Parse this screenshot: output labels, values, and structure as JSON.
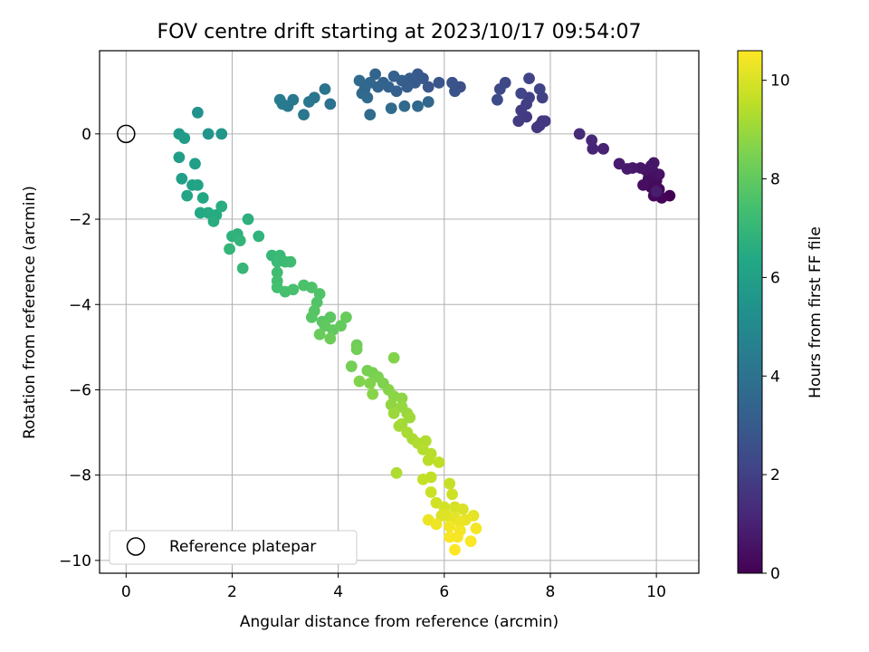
{
  "chart_data": {
    "type": "scatter",
    "title": "FOV centre drift starting at 2023/10/17 09:54:07",
    "xlabel": "Angular distance from reference (arcmin)",
    "ylabel": "Rotation from reference (arcmin)",
    "xlim": [
      -0.5,
      10.8
    ],
    "ylim": [
      -10.3,
      1.95
    ],
    "xticks": [
      0,
      2,
      4,
      6,
      8,
      10
    ],
    "xtick_labels": [
      "0",
      "2",
      "4",
      "6",
      "8",
      "10"
    ],
    "yticks": [
      0,
      -2,
      -4,
      -6,
      -8,
      -10
    ],
    "ytick_labels": [
      "0",
      "−2",
      "−4",
      "−6",
      "−8",
      "−10"
    ],
    "grid": true,
    "legend": {
      "placement": "lower-left",
      "entries": [
        "Reference platepar"
      ]
    },
    "reference_point": {
      "x": 0,
      "y": 0,
      "marker": "open-circle"
    },
    "colorbar": {
      "label": "Hours from first FF file",
      "colormap": "viridis",
      "range": [
        0,
        10.6
      ],
      "ticks": [
        0,
        2,
        4,
        6,
        8,
        10
      ],
      "tick_labels": [
        "0",
        "2",
        "4",
        "6",
        "8",
        "10"
      ]
    },
    "points": [
      {
        "x": 10.25,
        "y": -1.45,
        "h": 0.0
      },
      {
        "x": 10.1,
        "y": -1.5,
        "h": 0.1
      },
      {
        "x": 10.05,
        "y": -1.3,
        "h": 0.15
      },
      {
        "x": 9.95,
        "y": -1.45,
        "h": 0.2
      },
      {
        "x": 9.9,
        "y": -1.25,
        "h": 0.25
      },
      {
        "x": 10.0,
        "y": -1.1,
        "h": 0.3
      },
      {
        "x": 9.85,
        "y": -1.05,
        "h": 0.35
      },
      {
        "x": 9.75,
        "y": -1.2,
        "h": 0.4
      },
      {
        "x": 9.95,
        "y": -0.9,
        "h": 0.45
      },
      {
        "x": 10.05,
        "y": -0.95,
        "h": 0.5
      },
      {
        "x": 9.8,
        "y": -0.85,
        "h": 0.55
      },
      {
        "x": 9.7,
        "y": -0.8,
        "h": 0.6
      },
      {
        "x": 9.9,
        "y": -0.75,
        "h": 0.62
      },
      {
        "x": 9.95,
        "y": -0.68,
        "h": 0.65
      },
      {
        "x": 9.55,
        "y": -0.8,
        "h": 0.7
      },
      {
        "x": 9.45,
        "y": -0.82,
        "h": 0.75
      },
      {
        "x": 9.3,
        "y": -0.7,
        "h": 0.8
      },
      {
        "x": 10.0,
        "y": -1.35,
        "h": 0.85
      },
      {
        "x": 9.0,
        "y": -0.35,
        "h": 1.0
      },
      {
        "x": 8.8,
        "y": -0.35,
        "h": 1.05
      },
      {
        "x": 8.78,
        "y": -0.15,
        "h": 1.15
      },
      {
        "x": 8.55,
        "y": 0.0,
        "h": 1.3
      },
      {
        "x": 7.85,
        "y": 0.3,
        "h": 1.6
      },
      {
        "x": 7.8,
        "y": 0.2,
        "h": 1.65
      },
      {
        "x": 7.75,
        "y": 0.15,
        "h": 1.7
      },
      {
        "x": 7.9,
        "y": 0.3,
        "h": 1.75
      },
      {
        "x": 7.55,
        "y": 0.4,
        "h": 1.8
      },
      {
        "x": 7.4,
        "y": 0.3,
        "h": 1.85
      },
      {
        "x": 7.45,
        "y": 0.55,
        "h": 1.9
      },
      {
        "x": 7.55,
        "y": 0.7,
        "h": 1.95
      },
      {
        "x": 7.6,
        "y": 0.85,
        "h": 2.0
      },
      {
        "x": 7.85,
        "y": 0.85,
        "h": 2.05
      },
      {
        "x": 7.8,
        "y": 1.05,
        "h": 2.1
      },
      {
        "x": 7.6,
        "y": 1.3,
        "h": 2.15
      },
      {
        "x": 7.45,
        "y": 0.95,
        "h": 2.2
      },
      {
        "x": 7.15,
        "y": 1.2,
        "h": 2.3
      },
      {
        "x": 7.05,
        "y": 1.05,
        "h": 2.35
      },
      {
        "x": 7.0,
        "y": 0.8,
        "h": 2.4
      },
      {
        "x": 6.3,
        "y": 1.1,
        "h": 2.6
      },
      {
        "x": 6.2,
        "y": 1.0,
        "h": 2.7
      },
      {
        "x": 6.15,
        "y": 1.2,
        "h": 2.75
      },
      {
        "x": 5.9,
        "y": 1.2,
        "h": 2.8
      },
      {
        "x": 5.7,
        "y": 1.1,
        "h": 2.85
      },
      {
        "x": 5.6,
        "y": 1.3,
        "h": 2.9
      },
      {
        "x": 5.5,
        "y": 1.4,
        "h": 2.95
      },
      {
        "x": 5.45,
        "y": 1.2,
        "h": 3.0
      },
      {
        "x": 5.35,
        "y": 1.3,
        "h": 3.05
      },
      {
        "x": 5.3,
        "y": 1.1,
        "h": 3.1
      },
      {
        "x": 5.2,
        "y": 1.25,
        "h": 3.15
      },
      {
        "x": 5.1,
        "y": 1.0,
        "h": 3.2
      },
      {
        "x": 5.05,
        "y": 1.35,
        "h": 3.25
      },
      {
        "x": 4.95,
        "y": 1.1,
        "h": 3.3
      },
      {
        "x": 4.85,
        "y": 1.2,
        "h": 3.35
      },
      {
        "x": 4.75,
        "y": 1.1,
        "h": 3.4
      },
      {
        "x": 4.7,
        "y": 1.4,
        "h": 3.45
      },
      {
        "x": 4.6,
        "y": 1.2,
        "h": 3.5
      },
      {
        "x": 4.5,
        "y": 1.05,
        "h": 3.55
      },
      {
        "x": 4.45,
        "y": 0.95,
        "h": 3.6
      },
      {
        "x": 4.55,
        "y": 0.85,
        "h": 3.65
      },
      {
        "x": 4.4,
        "y": 1.25,
        "h": 3.7
      },
      {
        "x": 5.7,
        "y": 0.75,
        "h": 3.5
      },
      {
        "x": 5.5,
        "y": 0.65,
        "h": 3.55
      },
      {
        "x": 5.25,
        "y": 0.65,
        "h": 3.6
      },
      {
        "x": 5.0,
        "y": 0.6,
        "h": 3.65
      },
      {
        "x": 4.6,
        "y": 0.45,
        "h": 3.75
      },
      {
        "x": 3.85,
        "y": 0.7,
        "h": 4.0
      },
      {
        "x": 3.75,
        "y": 1.05,
        "h": 4.05
      },
      {
        "x": 3.55,
        "y": 0.85,
        "h": 4.1
      },
      {
        "x": 3.45,
        "y": 0.75,
        "h": 4.15
      },
      {
        "x": 3.35,
        "y": 0.45,
        "h": 4.2
      },
      {
        "x": 3.15,
        "y": 0.8,
        "h": 4.25
      },
      {
        "x": 3.05,
        "y": 0.65,
        "h": 4.3
      },
      {
        "x": 2.95,
        "y": 0.7,
        "h": 4.35
      },
      {
        "x": 2.9,
        "y": 0.8,
        "h": 4.4
      },
      {
        "x": 1.35,
        "y": 0.5,
        "h": 5.4
      },
      {
        "x": 1.55,
        "y": 0.0,
        "h": 5.5
      },
      {
        "x": 1.8,
        "y": 0.0,
        "h": 5.6
      },
      {
        "x": 1.0,
        "y": 0.0,
        "h": 5.8
      },
      {
        "x": 1.1,
        "y": -0.1,
        "h": 5.85
      },
      {
        "x": 1.0,
        "y": -0.55,
        "h": 5.9
      },
      {
        "x": 1.3,
        "y": -0.7,
        "h": 5.95
      },
      {
        "x": 1.05,
        "y": -1.05,
        "h": 6.0
      },
      {
        "x": 1.25,
        "y": -1.2,
        "h": 6.1
      },
      {
        "x": 1.35,
        "y": -1.2,
        "h": 6.15
      },
      {
        "x": 1.15,
        "y": -1.45,
        "h": 6.2
      },
      {
        "x": 1.45,
        "y": -1.5,
        "h": 6.3
      },
      {
        "x": 1.4,
        "y": -1.85,
        "h": 6.4
      },
      {
        "x": 1.55,
        "y": -1.85,
        "h": 6.45
      },
      {
        "x": 1.7,
        "y": -1.9,
        "h": 6.5
      },
      {
        "x": 1.65,
        "y": -2.05,
        "h": 6.55
      },
      {
        "x": 1.8,
        "y": -1.7,
        "h": 6.6
      },
      {
        "x": 2.3,
        "y": -2.0,
        "h": 6.7
      },
      {
        "x": 2.1,
        "y": -2.35,
        "h": 6.75
      },
      {
        "x": 2.0,
        "y": -2.4,
        "h": 6.8
      },
      {
        "x": 2.5,
        "y": -2.4,
        "h": 6.85
      },
      {
        "x": 2.15,
        "y": -2.5,
        "h": 6.9
      },
      {
        "x": 1.95,
        "y": -2.7,
        "h": 6.95
      },
      {
        "x": 2.2,
        "y": -3.15,
        "h": 7.0
      },
      {
        "x": 2.75,
        "y": -2.85,
        "h": 7.05
      },
      {
        "x": 2.9,
        "y": -2.85,
        "h": 7.1
      },
      {
        "x": 2.85,
        "y": -3.0,
        "h": 7.15
      },
      {
        "x": 3.0,
        "y": -3.0,
        "h": 7.2
      },
      {
        "x": 3.1,
        "y": -3.0,
        "h": 7.25
      },
      {
        "x": 2.85,
        "y": -3.25,
        "h": 7.3
      },
      {
        "x": 2.85,
        "y": -3.45,
        "h": 7.35
      },
      {
        "x": 2.85,
        "y": -3.6,
        "h": 7.4
      },
      {
        "x": 3.0,
        "y": -3.7,
        "h": 7.45
      },
      {
        "x": 3.15,
        "y": -3.65,
        "h": 7.5
      },
      {
        "x": 3.35,
        "y": -3.55,
        "h": 7.55
      },
      {
        "x": 3.5,
        "y": -3.6,
        "h": 7.6
      },
      {
        "x": 3.65,
        "y": -3.75,
        "h": 7.65
      },
      {
        "x": 3.6,
        "y": -3.95,
        "h": 7.7
      },
      {
        "x": 3.55,
        "y": -4.15,
        "h": 7.75
      },
      {
        "x": 3.5,
        "y": -4.3,
        "h": 7.8
      },
      {
        "x": 3.7,
        "y": -4.4,
        "h": 7.85
      },
      {
        "x": 3.85,
        "y": -4.3,
        "h": 7.9
      },
      {
        "x": 3.75,
        "y": -4.5,
        "h": 7.95
      },
      {
        "x": 3.9,
        "y": -4.6,
        "h": 8.0
      },
      {
        "x": 4.05,
        "y": -4.5,
        "h": 8.05
      },
      {
        "x": 4.15,
        "y": -4.3,
        "h": 8.1
      },
      {
        "x": 3.65,
        "y": -4.7,
        "h": 8.15
      },
      {
        "x": 3.85,
        "y": -4.8,
        "h": 8.2
      },
      {
        "x": 4.35,
        "y": -4.95,
        "h": 8.25
      },
      {
        "x": 4.35,
        "y": -5.05,
        "h": 8.3
      },
      {
        "x": 4.25,
        "y": -5.45,
        "h": 8.35
      },
      {
        "x": 4.55,
        "y": -5.55,
        "h": 8.4
      },
      {
        "x": 4.65,
        "y": -5.6,
        "h": 8.45
      },
      {
        "x": 4.75,
        "y": -5.7,
        "h": 8.5
      },
      {
        "x": 4.85,
        "y": -5.85,
        "h": 8.55
      },
      {
        "x": 4.6,
        "y": -5.85,
        "h": 8.6
      },
      {
        "x": 4.4,
        "y": -5.8,
        "h": 8.6
      },
      {
        "x": 4.95,
        "y": -6.0,
        "h": 8.65
      },
      {
        "x": 4.65,
        "y": -6.1,
        "h": 8.7
      },
      {
        "x": 5.05,
        "y": -6.15,
        "h": 8.75
      },
      {
        "x": 5.2,
        "y": -6.2,
        "h": 8.8
      },
      {
        "x": 5.05,
        "y": -5.25,
        "h": 8.6
      },
      {
        "x": 5.0,
        "y": -6.35,
        "h": 8.85
      },
      {
        "x": 5.2,
        "y": -6.4,
        "h": 8.9
      },
      {
        "x": 5.3,
        "y": -6.55,
        "h": 8.95
      },
      {
        "x": 5.05,
        "y": -6.55,
        "h": 9.0
      },
      {
        "x": 5.35,
        "y": -6.65,
        "h": 9.05
      },
      {
        "x": 5.2,
        "y": -6.8,
        "h": 9.1
      },
      {
        "x": 5.15,
        "y": -6.85,
        "h": 9.15
      },
      {
        "x": 5.3,
        "y": -7.0,
        "h": 9.2
      },
      {
        "x": 5.4,
        "y": -7.15,
        "h": 9.25
      },
      {
        "x": 5.5,
        "y": -7.25,
        "h": 9.3
      },
      {
        "x": 5.65,
        "y": -7.2,
        "h": 9.35
      },
      {
        "x": 5.6,
        "y": -7.4,
        "h": 9.4
      },
      {
        "x": 5.75,
        "y": -7.5,
        "h": 9.45
      },
      {
        "x": 5.7,
        "y": -7.65,
        "h": 9.5
      },
      {
        "x": 5.9,
        "y": -7.7,
        "h": 9.55
      },
      {
        "x": 5.1,
        "y": -7.95,
        "h": 9.3
      },
      {
        "x": 5.75,
        "y": -8.05,
        "h": 9.6
      },
      {
        "x": 5.6,
        "y": -8.1,
        "h": 9.65
      },
      {
        "x": 6.1,
        "y": -8.2,
        "h": 9.7
      },
      {
        "x": 5.75,
        "y": -8.4,
        "h": 9.75
      },
      {
        "x": 6.15,
        "y": -8.45,
        "h": 9.8
      },
      {
        "x": 5.85,
        "y": -8.65,
        "h": 9.85
      },
      {
        "x": 6.0,
        "y": -8.75,
        "h": 9.9
      },
      {
        "x": 6.2,
        "y": -8.75,
        "h": 9.95
      },
      {
        "x": 6.35,
        "y": -8.8,
        "h": 10.0
      },
      {
        "x": 5.95,
        "y": -8.95,
        "h": 10.05
      },
      {
        "x": 6.05,
        "y": -8.95,
        "h": 10.1
      },
      {
        "x": 6.2,
        "y": -9.0,
        "h": 10.15
      },
      {
        "x": 6.55,
        "y": -8.95,
        "h": 10.2
      },
      {
        "x": 6.4,
        "y": -9.05,
        "h": 10.25
      },
      {
        "x": 6.3,
        "y": -9.1,
        "h": 10.3
      },
      {
        "x": 5.7,
        "y": -9.05,
        "h": 10.3
      },
      {
        "x": 5.85,
        "y": -9.15,
        "h": 10.35
      },
      {
        "x": 6.1,
        "y": -9.2,
        "h": 10.4
      },
      {
        "x": 6.6,
        "y": -9.25,
        "h": 10.45
      },
      {
        "x": 6.3,
        "y": -9.3,
        "h": 10.45
      },
      {
        "x": 6.1,
        "y": -9.45,
        "h": 10.5
      },
      {
        "x": 6.25,
        "y": -9.45,
        "h": 10.5
      },
      {
        "x": 6.5,
        "y": -9.55,
        "h": 10.55
      },
      {
        "x": 6.2,
        "y": -9.75,
        "h": 10.6
      }
    ]
  }
}
